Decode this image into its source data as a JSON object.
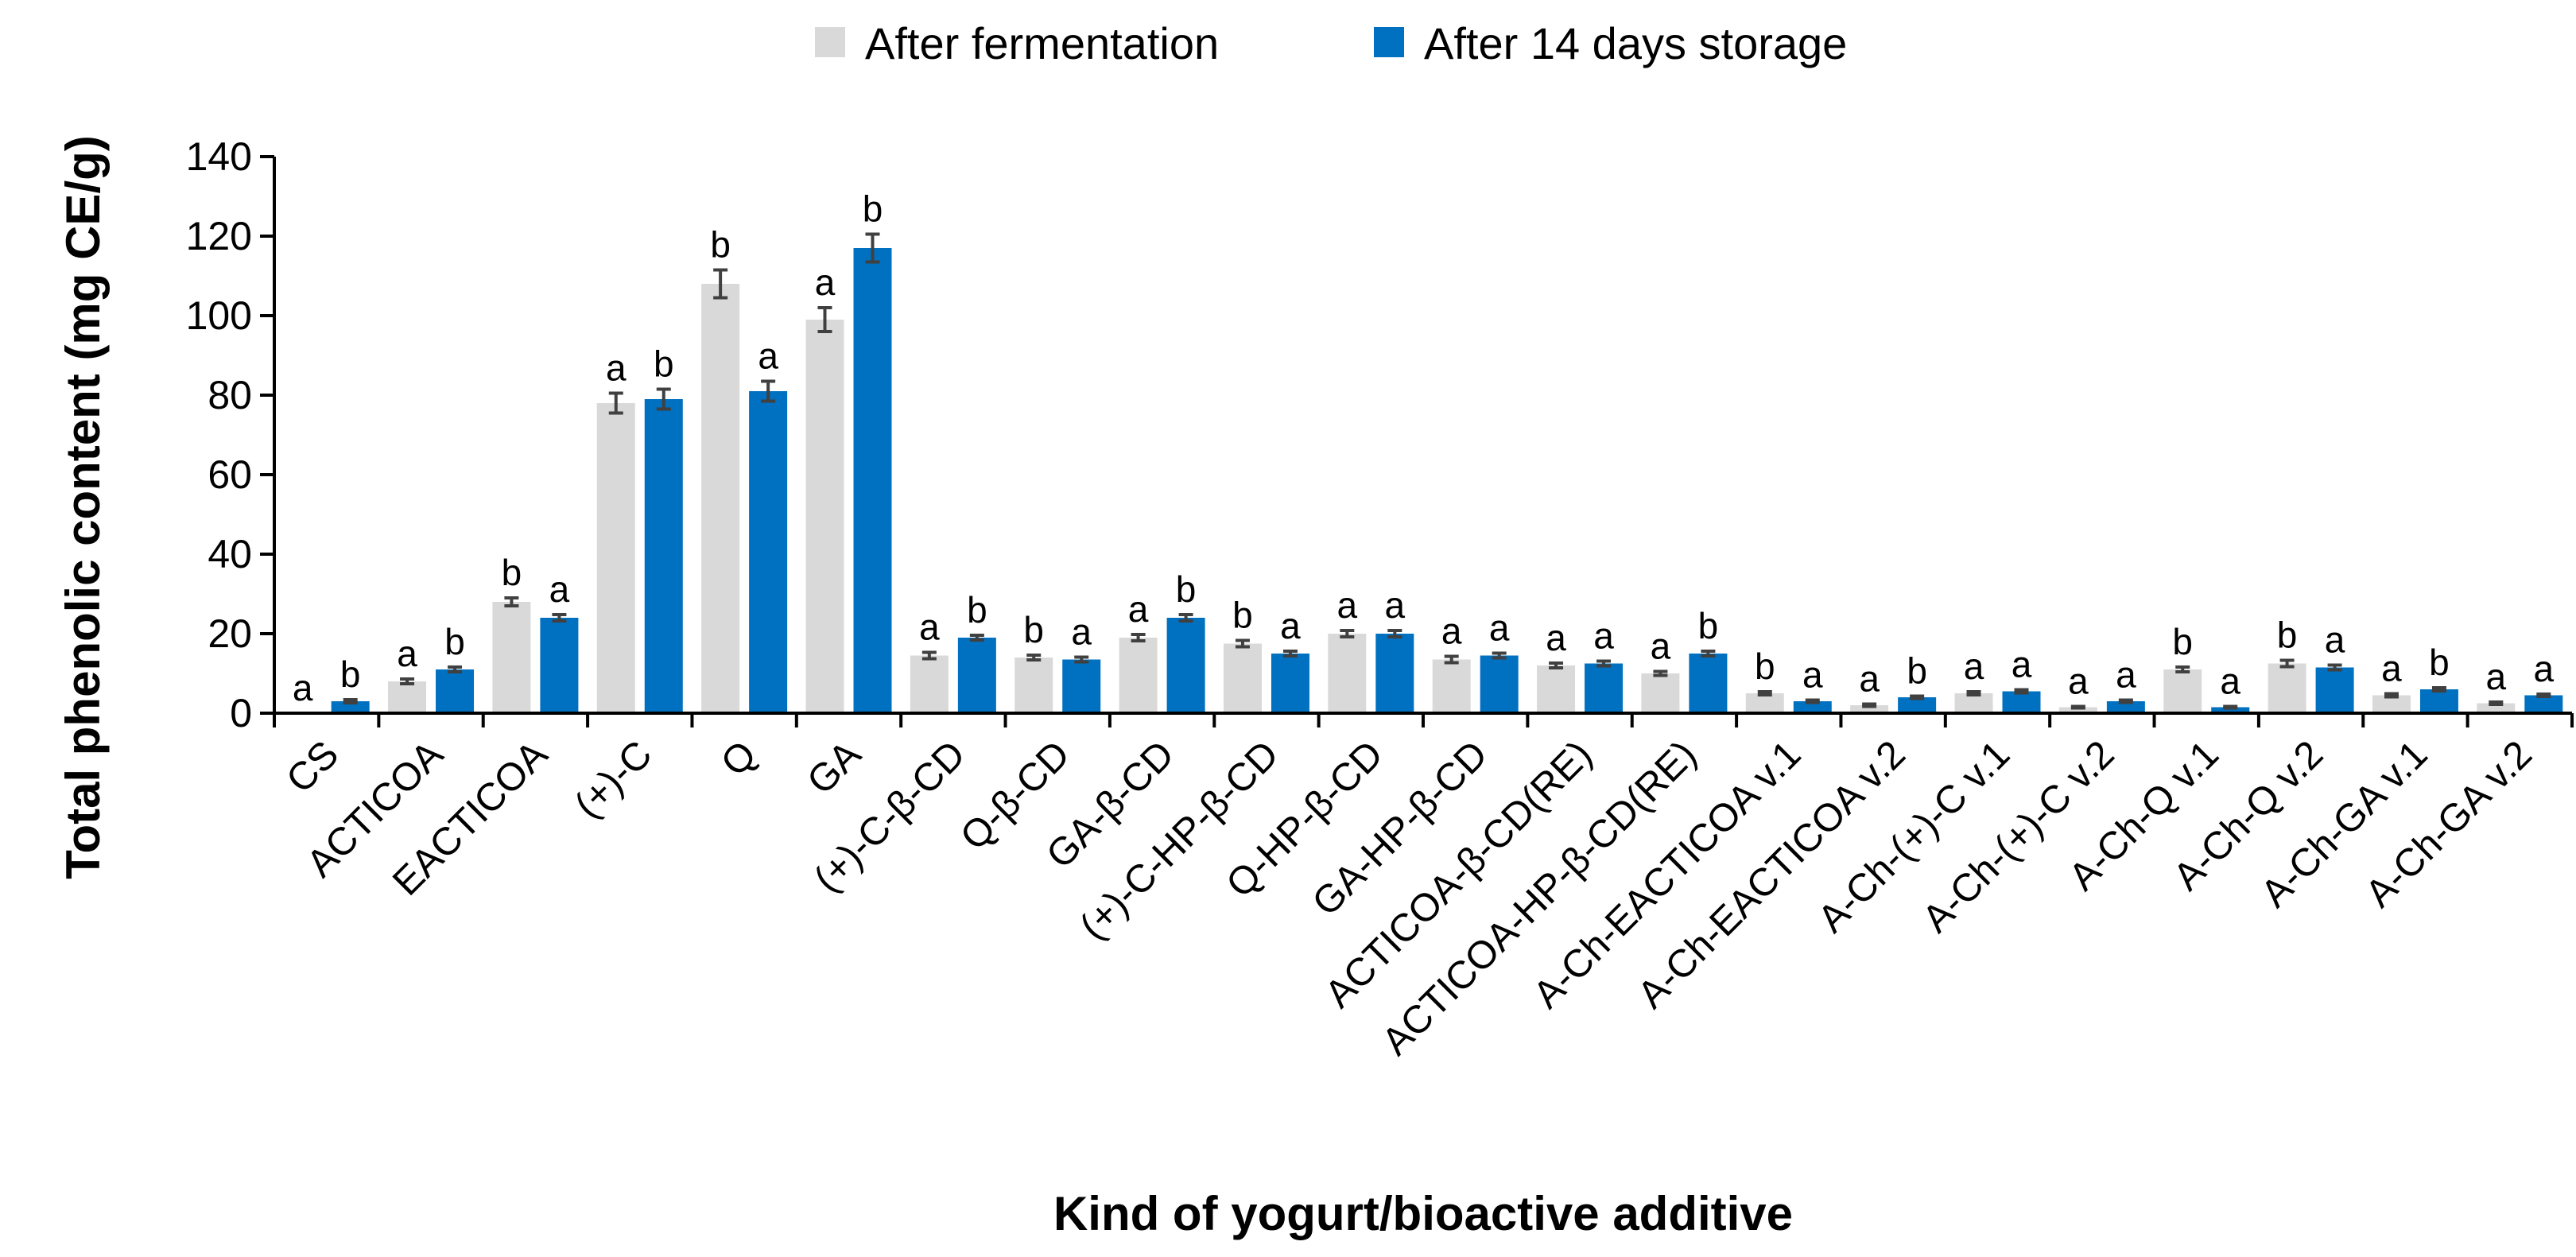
{
  "chart_data": {
    "type": "bar",
    "title": "",
    "xlabel": "Kind of yogurt/bioactive additive",
    "ylabel": "Total phenolic content  (mg CE/g)",
    "ylim": [
      0,
      140
    ],
    "yticks": [
      0,
      20,
      40,
      60,
      80,
      100,
      120,
      140
    ],
    "grid": false,
    "legend_position": "top-center",
    "categories": [
      "CS",
      "ACTICOA",
      "EACTICOA",
      "(+)-C",
      "Q",
      "GA",
      "(+)-C-β-CD",
      "Q-β-CD",
      "GA-β-CD",
      "(+)-C-HP-β-CD",
      "Q-HP-β-CD",
      "GA-HP-β-CD",
      "ACTICOA-β-CD(RE)",
      "ACTICOA-HP-β-CD(RE)",
      "A-Ch-EACTICOA v.1",
      "A-Ch-EACTICOA v.2",
      "A-Ch-(+)-C v.1",
      "A-Ch-(+)-C v.2",
      "A-Ch-Q v.1",
      "A-Ch-Q v.2",
      "A-Ch-GA v.1",
      "A-Ch-GA v.2"
    ],
    "series": [
      {
        "name": "After fermentation",
        "color": "#d9d9d9",
        "values": [
          0,
          8,
          28,
          78,
          108,
          99,
          14.5,
          14,
          19,
          17.5,
          20,
          13.5,
          12,
          10,
          5,
          2,
          5,
          1.5,
          11,
          12.5,
          4.5,
          2.5
        ],
        "errors": [
          0,
          0.6,
          1,
          2.5,
          3.5,
          3,
          0.8,
          0.6,
          0.8,
          0.8,
          0.8,
          0.8,
          0.6,
          0.5,
          0.4,
          0.3,
          0.4,
          0.2,
          0.6,
          0.8,
          0.4,
          0.3
        ],
        "labels": [
          "a",
          "a",
          "b",
          "a",
          "b",
          "a",
          "a",
          "b",
          "a",
          "b",
          "a",
          "a",
          "a",
          "a",
          "b",
          "a",
          "a",
          "a",
          "b",
          "b",
          "a",
          "a"
        ]
      },
      {
        "name": "After 14 days storage",
        "color": "#0070c0",
        "values": [
          3,
          11,
          24,
          79,
          81,
          117,
          19,
          13.5,
          24,
          15,
          20,
          14.5,
          12.5,
          15,
          3,
          4,
          5.5,
          3,
          1.5,
          11.5,
          6,
          4.5
        ],
        "errors": [
          0.4,
          0.6,
          0.8,
          2.5,
          2.5,
          3.5,
          0.6,
          0.6,
          0.8,
          0.6,
          0.8,
          0.6,
          0.6,
          0.6,
          0.3,
          0.3,
          0.4,
          0.3,
          0.2,
          0.6,
          0.4,
          0.3
        ],
        "labels": [
          "b",
          "b",
          "a",
          "b",
          "a",
          "b",
          "b",
          "a",
          "b",
          "a",
          "a",
          "a",
          "a",
          "b",
          "a",
          "b",
          "a",
          "a",
          "a",
          "a",
          "b",
          "a"
        ]
      }
    ]
  }
}
